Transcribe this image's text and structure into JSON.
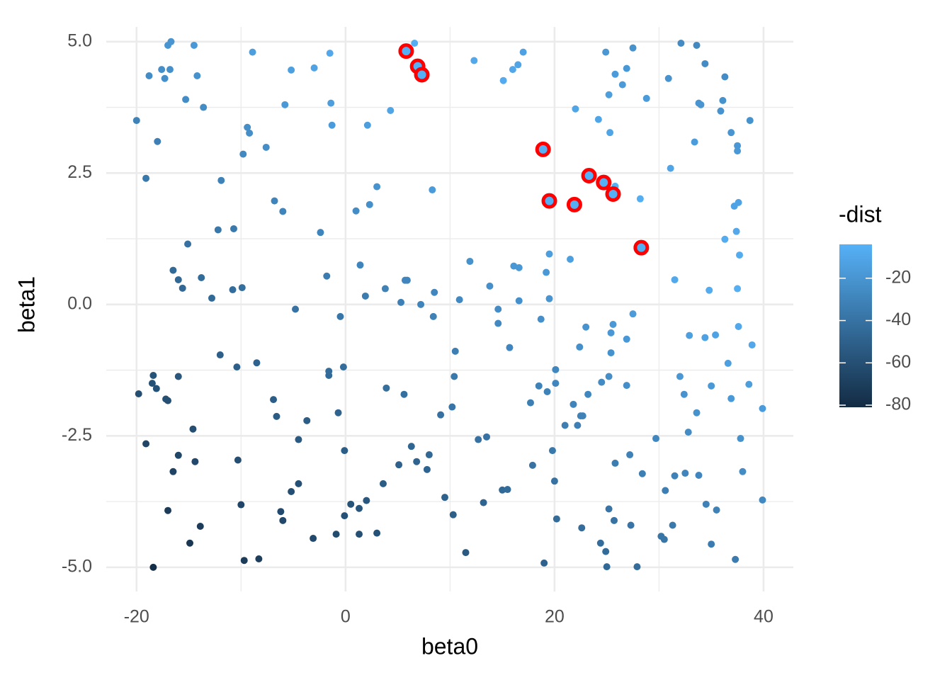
{
  "chart_data": {
    "type": "scatter",
    "xlabel": "beta0",
    "ylabel": "beta1",
    "xlim": [
      -22.9,
      42.85
    ],
    "ylim": [
      -5.46,
      5.28
    ],
    "xticks": [
      -20,
      0,
      20,
      40
    ],
    "yticks": [
      {
        "value": 5,
        "label": "5.0"
      },
      {
        "value": 2.5,
        "label": "2.5"
      },
      {
        "value": 0,
        "label": "0.0"
      },
      {
        "value": -2.5,
        "label": "-2.5"
      },
      {
        "value": -5,
        "label": "-5.0"
      }
    ],
    "xminor": [
      -10,
      10,
      30
    ],
    "yminor": [
      3.75,
      1.25,
      -1.25,
      -3.75
    ],
    "grid": true,
    "x": [
      -20,
      -19.1,
      -19.8,
      -19.1,
      -18.8,
      -18.5,
      -18.4,
      -18.4,
      -18.1,
      -18,
      -17.6,
      -17.3,
      -17.2,
      -17,
      -17,
      -17,
      -16.8,
      -16.7,
      -16.5,
      -16.5,
      -16,
      -16,
      -16,
      -15.6,
      -15.3,
      -15.1,
      -14.9,
      -14.6,
      -14.5,
      -14.4,
      -14.2,
      -13.9,
      -13.8,
      -13.6,
      -12.8,
      -12.2,
      -12,
      -11.9,
      -10.7,
      -10.8,
      -10.4,
      -10.3,
      -10,
      -9.9,
      -9.8,
      -9.7,
      -9.4,
      -9.2,
      -8.9,
      -8.5,
      -8.3,
      -7.6,
      -6.9,
      -6.8,
      -6.6,
      -6.2,
      -6,
      -6,
      -5.8,
      -5.2,
      -5.2,
      -4.8,
      -4.5,
      -4.5,
      -3.7,
      -3.1,
      -3,
      -2.4,
      -1.8,
      -1.6,
      -1.6,
      -1.5,
      -1.4,
      -1.3,
      -0.9,
      -0.7,
      -0.5,
      -0.2,
      -0.1,
      -0.1,
      0.5,
      1,
      1.3,
      1.3,
      1.4,
      1.9,
      2,
      2.1,
      2.3,
      3,
      3,
      3.6,
      3.8,
      3.9,
      4.3,
      5.1,
      5.3,
      5.6,
      5.7,
      5.9,
      6.3,
      6.6,
      6.8,
      7.2,
      7.8,
      8,
      8.3,
      8.4,
      8.5,
      9.1,
      9.5,
      10.2,
      10.3,
      10.4,
      10.5,
      10.9,
      11.5,
      11.9,
      12.3,
      12.7,
      13.2,
      13.5,
      13.8,
      14.6,
      14.6,
      15,
      15.1,
      15.5,
      15.7,
      16,
      16.1,
      16.5,
      16.6,
      16.6,
      17,
      17.7,
      17.9,
      18.5,
      18.7,
      19,
      19.2,
      19.3,
      19.5,
      19.5,
      19.8,
      20,
      20.1,
      20.1,
      20.2,
      21,
      21.5,
      21.8,
      22,
      22.2,
      22.4,
      22.5,
      22.6,
      22.7,
      23,
      23.2,
      24.2,
      24.4,
      24.5,
      24.9,
      24.9,
      25,
      25.2,
      25.2,
      25.2,
      25.3,
      25.4,
      25.4,
      25.6,
      25.7,
      25.8,
      25.8,
      25.8,
      26.5,
      26.9,
      26.9,
      26.9,
      27.2,
      27.3,
      27.5,
      27.5,
      27.9,
      28.2,
      28.4,
      28.8,
      29.7,
      30.2,
      30.5,
      30.6,
      30.9,
      31.1,
      31.3,
      31.5,
      31.5,
      32,
      32.1,
      32.4,
      32.5,
      32.8,
      32.9,
      33.4,
      33.6,
      33.6,
      33.8,
      33.8,
      34,
      34.4,
      34.4,
      34.5,
      34.8,
      35,
      35,
      35.4,
      35.5,
      35.9,
      36.1,
      36.3,
      36.3,
      36.6,
      36.9,
      36.9,
      37.2,
      37.3,
      37.4,
      37.5,
      37.5,
      37.5,
      37.6,
      37.6,
      37.7,
      37.8,
      38,
      38.6,
      38.7,
      38.9,
      39.9,
      39.9
    ],
    "values": [
      3.5,
      2.4,
      -1.7,
      -2.65,
      4.35,
      -1.5,
      -1.35,
      -5,
      -1.6,
      3.1,
      4.47,
      4.3,
      -1.8,
      4.93,
      -1.83,
      -3.92,
      4.47,
      5,
      0.65,
      -3.18,
      0.47,
      -1.37,
      -2.87,
      0.31,
      3.9,
      1.15,
      -4.54,
      -2.37,
      4.93,
      -2.99,
      4.35,
      -4.22,
      0.51,
      3.75,
      0.12,
      1.42,
      -0.96,
      2.36,
      1.44,
      0.28,
      -1.19,
      -2.96,
      -3.81,
      0.32,
      2.86,
      -4.87,
      3.37,
      3.26,
      4.8,
      -1.11,
      -4.84,
      2.99,
      -1.81,
      1.97,
      -2.13,
      -3.94,
      1.77,
      -4.11,
      3.8,
      -3.56,
      4.46,
      -0.09,
      -2.57,
      -3.41,
      -2.21,
      -4.45,
      4.5,
      1.37,
      0.54,
      -1.35,
      -1.27,
      4.78,
      3.83,
      3.41,
      -4.37,
      -2.06,
      -0.23,
      -1.19,
      -2.78,
      -4.02,
      -3.8,
      1.78,
      -3.88,
      -4.37,
      0.75,
      0.16,
      -3.73,
      3.41,
      1.9,
      2.24,
      -4.35,
      -3.41,
      0.3,
      -1.59,
      3.69,
      -3.05,
      0.04,
      -1.71,
      0.46,
      0.46,
      -2.7,
      4.97,
      -2.99,
      0,
      -3.14,
      -2.86,
      2.18,
      -0.23,
      0.23,
      -2.1,
      -3.67,
      -1.95,
      -4,
      -1.37,
      -0.89,
      0.09,
      -4.72,
      0.82,
      4.64,
      -2.57,
      -3.77,
      -2.52,
      0.35,
      -0.09,
      -0.36,
      -3.53,
      4.26,
      -3.52,
      -0.82,
      4.47,
      0.73,
      4.56,
      0.7,
      0.07,
      4.8,
      -1.87,
      -3.06,
      -1.55,
      -0.28,
      -4.92,
      0.61,
      -1.66,
      0.96,
      0.11,
      -2.78,
      -3.36,
      -1.24,
      -1.5,
      -4.08,
      -2.3,
      0.86,
      -1.9,
      3.72,
      -2.3,
      -0.81,
      -2.12,
      -4.25,
      -2.12,
      -0.43,
      -1.71,
      3.52,
      -4.54,
      -1.48,
      4.8,
      -4.7,
      -4.99,
      -1.37,
      -3.89,
      3.99,
      3.27,
      -0.92,
      -0.54,
      -0.38,
      -4.11,
      -3.02,
      4.38,
      2.25,
      4.18,
      4.49,
      -0.66,
      -1.54,
      -2.86,
      -4.2,
      -0.18,
      4.88,
      -4.99,
      2.01,
      -3.22,
      3.92,
      -2.55,
      -4.41,
      -4.47,
      -3.54,
      4.3,
      2.59,
      -4.2,
      0.47,
      -3.26,
      -1.37,
      4.97,
      -1.71,
      -3.21,
      -2.43,
      -0.59,
      3.09,
      -2.06,
      4.93,
      3.83,
      -3.25,
      3.8,
      4.58,
      -0.63,
      -3.8,
      0.27,
      -1.55,
      -4.56,
      -0.58,
      -3.91,
      3.68,
      3.88,
      4.33,
      1.24,
      -1.12,
      3.27,
      -1.79,
      1.87,
      -4.85,
      1.39,
      3.02,
      2.92,
      0.3,
      1.94,
      -0.42,
      0.94,
      -2.55,
      -3.18,
      -1.52,
      3.5,
      -0.77,
      -1.98,
      -3.72
    ],
    "color_values": [
      -31,
      -37,
      -61,
      -66,
      -25,
      -59,
      -58,
      -79,
      -59,
      -32,
      -24,
      -24,
      -60,
      -20,
      -60,
      -72,
      -23,
      -20,
      -45,
      -67,
      -46,
      -56,
      -65,
      -46,
      -25,
      -41,
      -74,
      -61,
      -18,
      -64,
      -22,
      -71,
      -44,
      -25,
      -45,
      -37,
      -51,
      -31,
      -36,
      -43,
      -51,
      -61,
      -66,
      -42,
      -27,
      -72,
      -24,
      -24,
      -15,
      -49,
      -70,
      -24,
      -52,
      -30,
      -53,
      -64,
      -30,
      -64,
      -18,
      -61,
      -14,
      -40,
      -54,
      -59,
      -52,
      -64,
      -12,
      -30,
      -34,
      -45,
      -44,
      -9,
      -15,
      -17,
      -62,
      -48,
      -38,
      -43,
      -52,
      -59,
      -58,
      -25,
      -57,
      -60,
      -30,
      -34,
      -56,
      -15,
      -23,
      -21,
      -59,
      -53,
      -31,
      -42,
      -11,
      -50,
      -32,
      -42,
      -29,
      -29,
      -47,
      -6,
      -48,
      -30,
      -48,
      -46,
      -17,
      -31,
      -28,
      -41,
      -50,
      -39,
      -51,
      -36,
      -33,
      -27,
      -54,
      -22,
      -9,
      -41,
      -48,
      -40,
      -23,
      -25,
      -27,
      -45,
      -8,
      -44,
      -29,
      -10,
      -19,
      -11,
      -19,
      -23,
      -13,
      -33,
      -40,
      -31,
      -23,
      -50,
      -18,
      -31,
      -15,
      -20,
      -37,
      -40,
      -28,
      -29,
      -44,
      -33,
      -14,
      -30,
      -11,
      -32,
      -23,
      -31,
      -43,
      -31,
      -21,
      -28,
      -11,
      -43,
      -26,
      -19,
      -44,
      -46,
      -24,
      -39,
      -15,
      -11,
      -22,
      -19,
      -18,
      -40,
      -34,
      -17,
      -5,
      -17,
      -19,
      -19,
      -24,
      -31,
      -39,
      -16,
      -22,
      -43,
      -6,
      -33,
      -17,
      -28,
      -38,
      -38,
      -33,
      -21,
      -11,
      -36,
      -9,
      -31,
      -19,
      -26,
      -21,
      -29,
      -25,
      -14,
      -16,
      -22,
      -27,
      -20,
      -29,
      -20,
      -25,
      -13,
      -31,
      -7,
      -18,
      -35,
      -12,
      -31,
      -21,
      -22,
      -25,
      -7,
      -14,
      -20,
      -18,
      -12,
      -35,
      -9,
      -19,
      -18,
      -5,
      -12,
      -9,
      -7,
      -22,
      -25,
      -15,
      -22,
      -10,
      -17,
      -27
    ],
    "highlight": {
      "color": "#ff0000",
      "x": [
        5.8,
        6.9,
        7.3,
        18.9,
        19.5,
        21.9,
        23.3,
        24.7,
        25.6,
        28.3
      ],
      "values": [
        4.82,
        4.53,
        4.37,
        2.95,
        1.97,
        1.9,
        2.45,
        2.32,
        2.1,
        1.08
      ],
      "color_values": [
        -5,
        -4,
        -5,
        -4,
        -5,
        -5,
        -4,
        -5,
        -5,
        -6
      ]
    },
    "legend": {
      "title": "-dist",
      "ticks": [
        -20,
        -40,
        -60,
        -80
      ],
      "colorlim": [
        -81,
        -4
      ],
      "low_color": "#132b43",
      "high_color": "#56b1f7"
    }
  }
}
